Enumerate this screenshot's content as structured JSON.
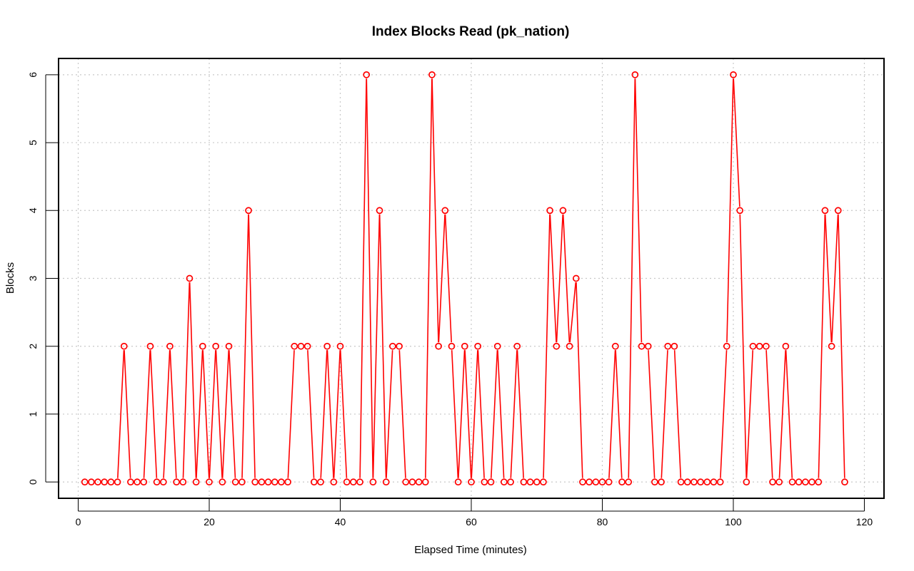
{
  "chart_data": {
    "type": "line",
    "title": "Index Blocks Read (pk_nation)",
    "xlabel": "Elapsed Time (minutes)",
    "ylabel": "Blocks",
    "xlim": [
      -3,
      123
    ],
    "ylim": [
      -0.24,
      6.24
    ],
    "x_ticks": [
      0,
      20,
      40,
      60,
      80,
      100,
      120
    ],
    "y_ticks": [
      0,
      1,
      2,
      3,
      4,
      5,
      6
    ],
    "grid": true,
    "legend": "none",
    "color": "#ff0000",
    "marker": "open-circle",
    "series": [
      {
        "x": [
          1,
          2,
          3,
          4,
          5,
          6,
          7,
          8,
          9,
          10,
          11,
          12,
          13,
          14,
          15,
          16,
          17,
          18,
          19,
          20,
          21,
          22,
          23,
          24,
          25,
          26,
          27,
          28,
          29,
          30,
          31,
          32,
          33,
          34,
          35,
          36,
          37,
          38,
          39,
          40,
          41,
          42,
          43,
          44,
          45,
          46,
          47,
          48,
          49,
          50,
          51,
          52,
          53,
          54,
          55,
          56,
          57,
          58,
          59,
          60,
          61,
          62,
          63,
          64,
          65,
          66,
          67,
          68,
          69,
          70,
          71,
          72,
          73,
          74,
          75,
          76,
          77,
          78,
          79,
          80,
          81,
          82,
          83,
          84,
          85,
          86,
          87,
          88,
          89,
          90,
          91,
          92,
          93,
          94,
          95,
          96,
          97,
          98,
          99,
          100,
          101,
          102,
          103,
          104,
          105,
          106,
          107,
          108,
          109,
          110,
          111,
          112,
          113,
          114,
          115,
          116,
          117
        ],
        "y": [
          0,
          0,
          0,
          0,
          0,
          0,
          2,
          0,
          0,
          0,
          2,
          0,
          0,
          2,
          0,
          0,
          3,
          0,
          2,
          0,
          2,
          0,
          2,
          0,
          0,
          4,
          0,
          0,
          0,
          0,
          0,
          0,
          2,
          2,
          2,
          0,
          0,
          2,
          0,
          2,
          0,
          0,
          0,
          6,
          0,
          4,
          0,
          2,
          2,
          0,
          0,
          0,
          0,
          6,
          2,
          4,
          2,
          0,
          2,
          0,
          2,
          0,
          0,
          2,
          0,
          0,
          2,
          0,
          0,
          0,
          0,
          4,
          2,
          4,
          2,
          3,
          0,
          0,
          0,
          0,
          0,
          2,
          0,
          0,
          6,
          2,
          2,
          0,
          0,
          2,
          2,
          0,
          0,
          0,
          0,
          0,
          0,
          0,
          2,
          6,
          4,
          0,
          2,
          2,
          2,
          0,
          0,
          2,
          0,
          0,
          0,
          0,
          0,
          4,
          2,
          4,
          0
        ]
      }
    ]
  }
}
